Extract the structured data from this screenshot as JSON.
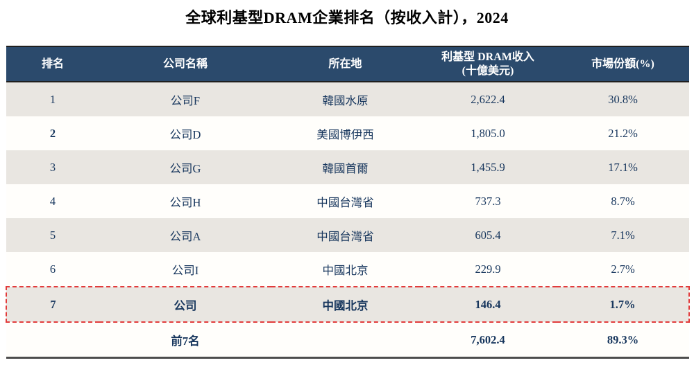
{
  "title": "全球利基型DRAM企業排名（按收入計），2024",
  "colors": {
    "header_bg": "#2b4a6c",
    "header_text": "#ffffff",
    "row_shaded_bg": "#e9e6e1",
    "row_plain_bg": "#fffefb",
    "cell_text": "#17365d",
    "highlight_border": "#e23b3b",
    "header_edge_border": "#1f1f1f",
    "table_bottom_border": "#4d4d4d"
  },
  "table": {
    "headers": {
      "rank": "排名",
      "company": "公司名稱",
      "location": "所在地",
      "revenue_line1": "利基型 DRAM收入",
      "revenue_line2": "(十億美元)",
      "share": "市場份額(%)"
    },
    "rows": [
      {
        "rank": "1",
        "company": "公司F",
        "location": "韓國水原",
        "revenue": "2,622.4",
        "share": "30.8%",
        "shaded": true,
        "bold": false,
        "rank_bold": false,
        "highlighted": false,
        "total": false
      },
      {
        "rank": "2",
        "company": "公司D",
        "location": "美國博伊西",
        "revenue": "1,805.0",
        "share": "21.2%",
        "shaded": false,
        "bold": false,
        "rank_bold": true,
        "highlighted": false,
        "total": false
      },
      {
        "rank": "3",
        "company": "公司G",
        "location": "韓國首爾",
        "revenue": "1,455.9",
        "share": "17.1%",
        "shaded": true,
        "bold": false,
        "rank_bold": false,
        "highlighted": false,
        "total": false
      },
      {
        "rank": "4",
        "company": "公司H",
        "location": "中國台灣省",
        "revenue": "737.3",
        "share": "8.7%",
        "shaded": false,
        "bold": false,
        "rank_bold": false,
        "highlighted": false,
        "total": false
      },
      {
        "rank": "5",
        "company": "公司A",
        "location": "中國台灣省",
        "revenue": "605.4",
        "share": "7.1%",
        "shaded": true,
        "bold": false,
        "rank_bold": false,
        "highlighted": false,
        "total": false
      },
      {
        "rank": "6",
        "company": "公司I",
        "location": "中國北京",
        "revenue": "229.9",
        "share": "2.7%",
        "shaded": false,
        "bold": false,
        "rank_bold": false,
        "highlighted": false,
        "total": false
      },
      {
        "rank": "7",
        "company": "公司",
        "location": "中國北京",
        "revenue": "146.4",
        "share": "1.7%",
        "shaded": true,
        "bold": true,
        "rank_bold": true,
        "highlighted": true,
        "total": false
      },
      {
        "rank": "",
        "company": "前7名",
        "location": "",
        "revenue": "7,602.4",
        "share": "89.3%",
        "shaded": false,
        "bold": true,
        "rank_bold": false,
        "highlighted": false,
        "total": true
      }
    ]
  }
}
